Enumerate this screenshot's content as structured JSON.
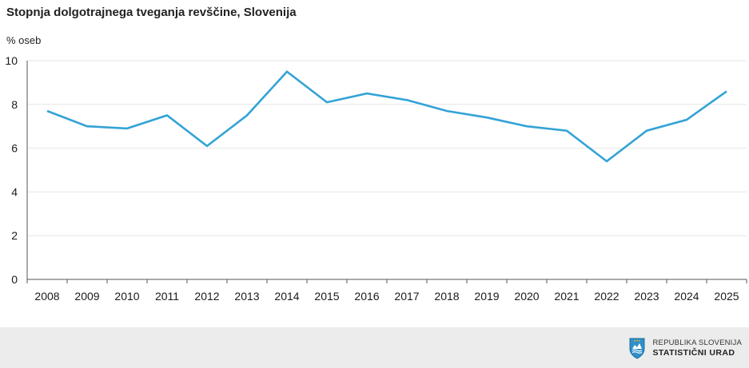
{
  "chart_data": {
    "type": "line",
    "title": "Stopnja dolgotrajnega tveganja revščine, Slovenija",
    "ylabel": "% oseb",
    "xlabel": "",
    "x": [
      "2008",
      "2009",
      "2010",
      "2011",
      "2012",
      "2013",
      "2014",
      "2015",
      "2016",
      "2017",
      "2018",
      "2019",
      "2020",
      "2021",
      "2022",
      "2023",
      "2024",
      "2025"
    ],
    "series": [
      {
        "values": [
          7.7,
          7.0,
          6.9,
          7.5,
          6.1,
          7.5,
          9.5,
          8.1,
          8.5,
          8.2,
          7.7,
          7.4,
          7.0,
          6.8,
          5.4,
          6.8,
          7.3,
          8.6
        ]
      }
    ],
    "ylim": [
      0,
      10
    ],
    "yticks": [
      0,
      2,
      4,
      6,
      8,
      10
    ],
    "grid": true,
    "colors": {
      "line": "#33a3d6",
      "grid": "#e6e6e6",
      "axis": "#555555"
    }
  },
  "footer": {
    "logo_line1": "REPUBLIKA SLOVENIJA",
    "logo_line2": "STATISTIČNI URAD",
    "logo_icon": "slovenian-coat-of-arms-icon"
  }
}
